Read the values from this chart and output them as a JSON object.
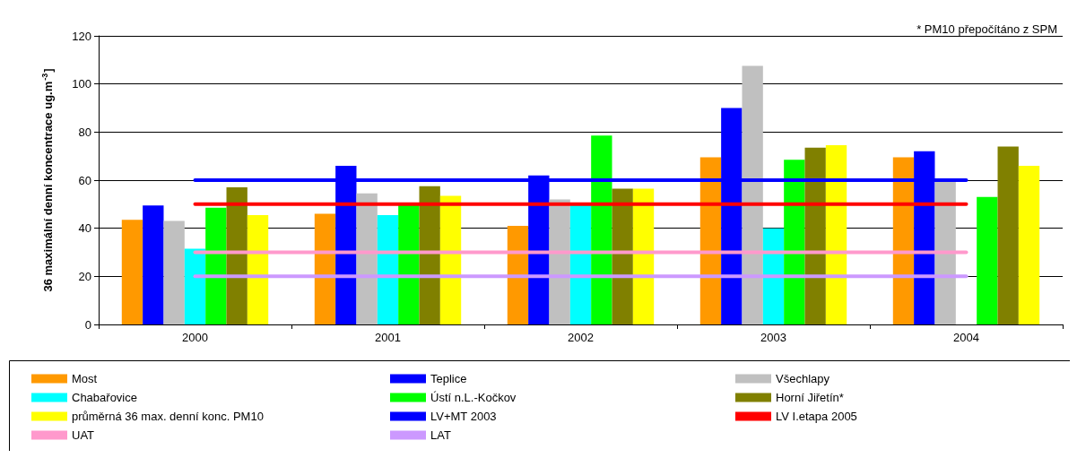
{
  "chart_data": {
    "type": "bar",
    "ylabel": "36 maximální denní koncentrace ug.m$^{-3}$]",
    "annotations": [
      "* PM10 přepočítáno z SPM"
    ],
    "categories": [
      "2000",
      "2001",
      "2002",
      "2003",
      "2004"
    ],
    "ylim": [
      0,
      120
    ],
    "yticks": [
      0,
      20,
      40,
      60,
      80,
      100,
      120
    ],
    "grid": "y",
    "legend": "bottom",
    "series": [
      {
        "name": "Most",
        "color": "#ff9900",
        "values": [
          43.5,
          46,
          41,
          69.5,
          69.5
        ]
      },
      {
        "name": "Teplice",
        "color": "#0000ff",
        "values": [
          49.5,
          66,
          62,
          90,
          72
        ]
      },
      {
        "name": "Všechlapy",
        "color": "#c0c0c0",
        "values": [
          43,
          54.5,
          52,
          107.5,
          59.5
        ]
      },
      {
        "name": "Chabařovice",
        "color": "#00ffff",
        "values": [
          31.5,
          45.5,
          50,
          40,
          null
        ]
      },
      {
        "name": "Ústí n.L.-Kočkov",
        "color": "#00ff00",
        "values": [
          48.5,
          50,
          78.5,
          68.5,
          53
        ]
      },
      {
        "name": "Horní Jiřetín*",
        "color": "#808000",
        "values": [
          57,
          57.5,
          56.5,
          73.5,
          74
        ]
      },
      {
        "name": "průměrná 36 max. denní konc. PM10",
        "color": "#ffff00",
        "values": [
          45.5,
          53.5,
          56.5,
          74.5,
          66
        ]
      },
      {
        "name": "LV+MT 2003",
        "type": "line",
        "color": "#0000ff",
        "values": [
          60,
          60,
          60,
          60,
          60
        ]
      },
      {
        "name": "LV I.etapa 2005",
        "type": "line",
        "color": "#ff0000",
        "values": [
          50,
          50,
          50,
          50,
          50
        ]
      },
      {
        "name": "UAT",
        "type": "line",
        "color": "#ff99cc",
        "values": [
          30,
          30,
          30,
          30,
          30
        ]
      },
      {
        "name": "LAT",
        "type": "line",
        "color": "#cc99ff",
        "values": [
          20,
          20,
          20,
          20,
          20
        ]
      }
    ]
  }
}
